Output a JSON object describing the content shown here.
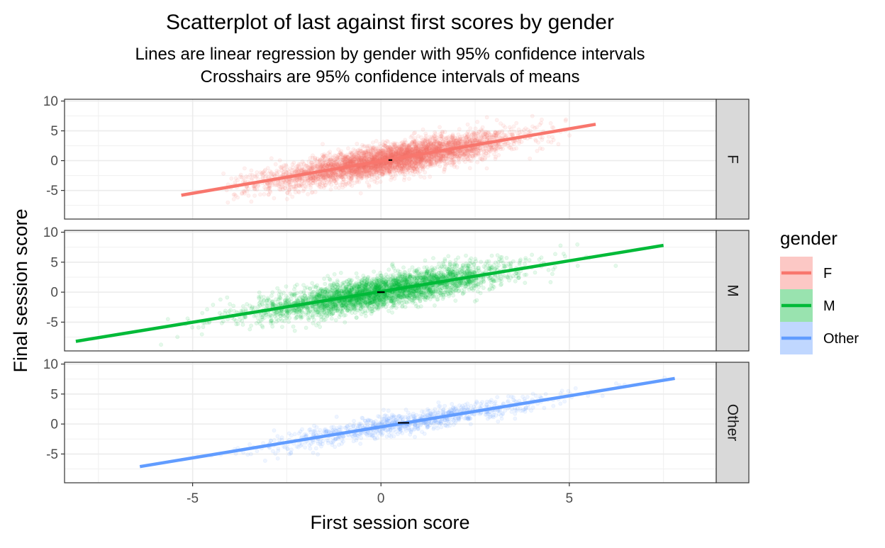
{
  "chart_data": {
    "type": "scatter",
    "title": "Scatterplot of last against first scores by gender",
    "subtitle_lines": [
      "Lines are linear regression by gender with 95% confidence intervals",
      "Crosshairs are 95% confidence intervals of means"
    ],
    "xlabel": "First session score",
    "ylabel": "Final session score",
    "xlim": [
      -8.4,
      8.9
    ],
    "ylim": [
      -9.8,
      10.3
    ],
    "x_ticks": [
      -5,
      0,
      5
    ],
    "y_ticks": [
      -5,
      0,
      5,
      10
    ],
    "grid": true,
    "legend": {
      "title": "gender",
      "position": "right",
      "entries": [
        "F",
        "M",
        "Other"
      ]
    },
    "facets": [
      {
        "strip": "F",
        "color": "#F8766D",
        "regression": {
          "x": [
            -5.3,
            5.7
          ],
          "y": [
            -5.8,
            6.1
          ]
        },
        "mean": {
          "x": 0.25,
          "y": 0.1
        },
        "mean_ci_x": [
          0.2,
          0.3
        ],
        "x_range": [
          -4.2,
          5.5
        ],
        "points": 4500,
        "slope": 1.05,
        "spread": 1.25,
        "x_sd": 1.55
      },
      {
        "strip": "M",
        "color": "#00BA38",
        "regression": {
          "x": [
            -8.1,
            7.5
          ],
          "y": [
            -8.2,
            7.8
          ]
        },
        "mean": {
          "x": 0.0,
          "y": 0.0
        },
        "mean_ci_x": [
          -0.1,
          0.1
        ],
        "x_range": [
          -8.1,
          7.5
        ],
        "points": 3500,
        "slope": 1.02,
        "spread": 1.3,
        "x_sd": 1.65
      },
      {
        "strip": "Other",
        "color": "#619CFF",
        "regression": {
          "x": [
            -6.4,
            7.8
          ],
          "y": [
            -7.1,
            7.6
          ]
        },
        "mean": {
          "x": 0.6,
          "y": 0.2
        },
        "mean_ci_x": [
          0.45,
          0.75
        ],
        "x_range": [
          -6.4,
          7.8
        ],
        "points": 900,
        "slope": 1.03,
        "spread": 0.9,
        "x_sd": 1.8
      }
    ]
  }
}
